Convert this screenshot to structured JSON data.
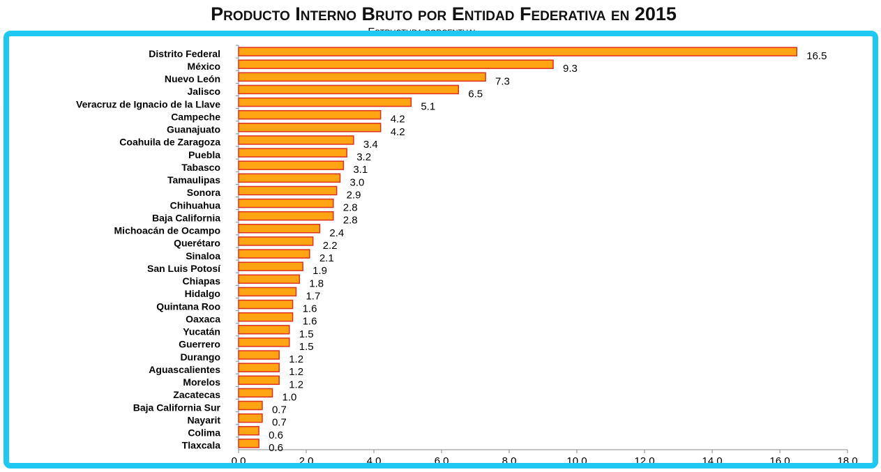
{
  "chart_data": {
    "type": "bar",
    "orientation": "horizontal",
    "title": "Producto Interno Bruto por Entidad Federativa en 2015",
    "subtitle": "Estructura porcentual",
    "categories": [
      "Distrito Federal",
      "México",
      "Nuevo León",
      "Jalisco",
      "Veracruz de Ignacio de la Llave",
      "Campeche",
      "Guanajuato",
      "Coahuila de Zaragoza",
      "Puebla",
      "Tabasco",
      "Tamaulipas",
      "Sonora",
      "Chihuahua",
      "Baja California",
      "Michoacán de Ocampo",
      "Querétaro",
      "Sinaloa",
      "San Luis Potosí",
      "Chiapas",
      "Hidalgo",
      "Quintana Roo",
      "Oaxaca",
      "Yucatán",
      "Guerrero",
      "Durango",
      "Aguascalientes",
      "Morelos",
      "Zacatecas",
      "Baja California Sur",
      "Nayarit",
      "Colima",
      "Tlaxcala"
    ],
    "values": [
      16.5,
      9.3,
      7.3,
      6.5,
      5.1,
      4.2,
      4.2,
      3.4,
      3.2,
      3.1,
      3.0,
      2.9,
      2.8,
      2.8,
      2.4,
      2.2,
      2.1,
      1.9,
      1.8,
      1.7,
      1.6,
      1.6,
      1.5,
      1.5,
      1.2,
      1.2,
      1.2,
      1.0,
      0.7,
      0.7,
      0.6,
      0.6
    ],
    "value_labels": [
      "16.5",
      "9.3",
      "7.3",
      "6.5",
      "5.1",
      "4.2",
      "4.2",
      "3.4",
      "3.2",
      "3.1",
      "3.0",
      "2.9",
      "2.8",
      "2.8",
      "2.4",
      "2.2",
      "2.1",
      "1.9",
      "1.8",
      "1.7",
      "1.6",
      "1.6",
      "1.5",
      "1.5",
      "1.2",
      "1.2",
      "1.2",
      "1.0",
      "0.7",
      "0.7",
      "0.6",
      "0.6"
    ],
    "color": "#ffa412",
    "edge_color": "#e0301e",
    "xlim": [
      0,
      18
    ],
    "xticks": [
      {
        "value": 0,
        "label": "0.0"
      },
      {
        "value": 2,
        "label": "2.0"
      },
      {
        "value": 4,
        "label": "4.0"
      },
      {
        "value": 6,
        "label": "6.0"
      },
      {
        "value": 8,
        "label": "8.0"
      },
      {
        "value": 10,
        "label": "10.0"
      },
      {
        "value": 12,
        "label": "12.0"
      },
      {
        "value": 14,
        "label": "14.0"
      },
      {
        "value": 16,
        "label": "16.0"
      },
      {
        "value": 18,
        "label": "18.0"
      }
    ],
    "grid": false
  }
}
